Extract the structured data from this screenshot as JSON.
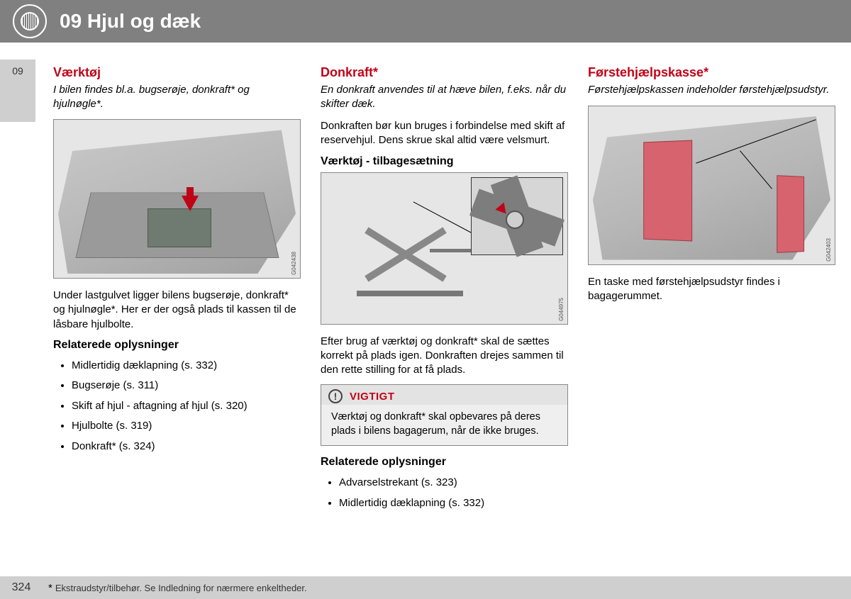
{
  "header": {
    "chapter": "09 Hjul og dæk",
    "tab": "09"
  },
  "col1": {
    "title": "Værktøj",
    "intro": "I bilen findes bl.a. bugserøje, donkraft* og hjulnøgle*.",
    "fig_code": "G042438",
    "after_fig": "Under lastgulvet ligger bilens bugserøje, donkraft* og hjulnøgle*. Her er der også plads til kassen til de låsbare hjulbolte.",
    "rel_head": "Relaterede oplysninger",
    "rel": [
      "Midlertidig dæklapning (s. 332)",
      "Bugserøje (s. 311)",
      "Skift af hjul - aftagning af hjul (s. 320)",
      "Hjulbolte (s. 319)",
      "Donkraft* (s. 324)"
    ]
  },
  "col2": {
    "title": "Donkraft*",
    "intro": "En donkraft anvendes til at hæve bilen, f.eks. når du skifter dæk.",
    "p1": "Donkraften bør kun bruges i forbindelse med skift af reservehjul. Dens skrue skal altid være velsmurt.",
    "sub": "Værktøj - tilbagesætning",
    "fig_code": "G044975",
    "after_fig": "Efter brug af værktøj og donkraft* skal de sættes korrekt på plads igen. Donkraften drejes sammen til den rette stilling for at få plads.",
    "note_title": "VIGTIGT",
    "note_body": "Værktøj og donkraft* skal opbevares på deres plads i bilens bagagerum, når de ikke bruges.",
    "rel_head": "Relaterede oplysninger",
    "rel": [
      "Advarselstrekant (s. 323)",
      "Midlertidig dæklapning (s. 332)"
    ]
  },
  "col3": {
    "title": "Førstehjælpskasse*",
    "intro": "Førstehjælpskassen indeholder førstehjælpsudstyr.",
    "fig_code": "G042403",
    "after_fig": "En taske med førstehjælpsudstyr findes i bagagerummet."
  },
  "footer": {
    "page": "324",
    "note": "Ekstraudstyr/tilbehør. Se Indledning for nærmere enkeltheder.",
    "star": "*"
  },
  "colors": {
    "header_bg": "#808080",
    "accent": "#c00418",
    "sidebar": "#cfcfcf"
  }
}
